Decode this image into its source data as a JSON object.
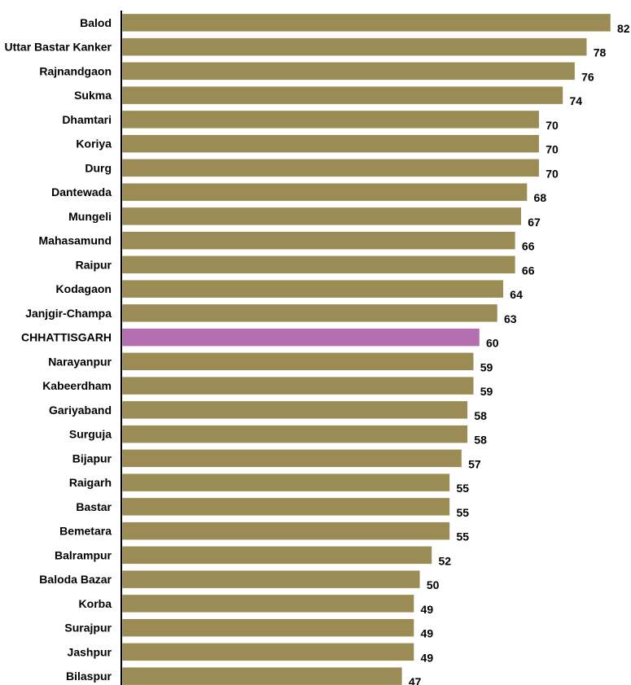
{
  "chart_data": {
    "type": "bar",
    "orientation": "horizontal",
    "title": "",
    "xlabel": "",
    "ylabel": "",
    "xlim": [
      0,
      82
    ],
    "grid": false,
    "legend": "none",
    "categories": [
      "Balod",
      "Uttar Bastar Kanker",
      "Rajnandgaon",
      "Sukma",
      "Dhamtari",
      "Koriya",
      "Durg",
      "Dantewada",
      "Mungeli",
      "Mahasamund",
      "Raipur",
      "Kodagaon",
      "Janjgir-Champa",
      "CHHATTISGARH",
      "Narayanpur",
      "Kabeerdham",
      "Gariyaband",
      "Surguja",
      "Bijapur",
      "Raigarh",
      "Bastar",
      "Bemetara",
      "Balrampur",
      "Baloda Bazar",
      "Korba",
      "Surajpur",
      "Jashpur",
      "Bilaspur"
    ],
    "values": [
      82,
      78,
      76,
      74,
      70,
      70,
      70,
      68,
      67,
      66,
      66,
      64,
      63,
      60,
      59,
      59,
      58,
      58,
      57,
      55,
      55,
      55,
      52,
      50,
      49,
      49,
      49,
      47
    ],
    "highlight_category": "CHHATTISGARH",
    "colors": {
      "bar": "#9b8c55",
      "highlight": "#b36fb0",
      "bar_stroke": "#ffffff",
      "axis": "#000000"
    }
  }
}
